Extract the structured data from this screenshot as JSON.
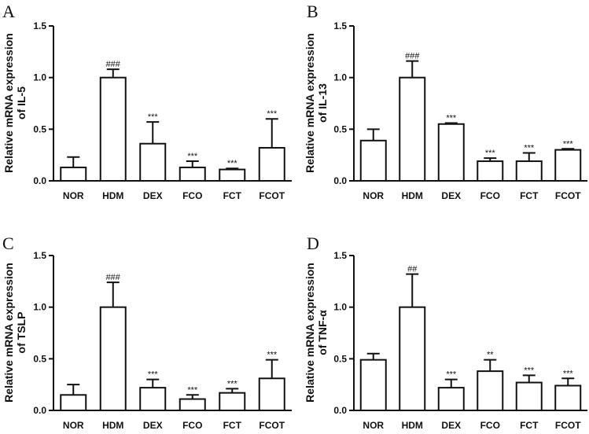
{
  "chart_data": [
    {
      "type": "bar",
      "panel": "A",
      "ylabel_lines": [
        "Relative mRNA expression",
        "of IL-5"
      ],
      "categories": [
        "NOR",
        "HDM",
        "DEX",
        "FCO",
        "FCT",
        "FCOT"
      ],
      "values": [
        0.13,
        1.0,
        0.36,
        0.13,
        0.11,
        0.32
      ],
      "errors": [
        0.1,
        0.08,
        0.21,
        0.06,
        0.01,
        0.28
      ],
      "significance": [
        "",
        "###",
        "***",
        "***",
        "***",
        "***"
      ],
      "ylim": [
        0,
        1.5
      ],
      "yticks": [
        0.0,
        0.5,
        1.0,
        1.5
      ],
      "ytick_labels": [
        "0.0",
        "0.5",
        "1.0",
        "1.5"
      ]
    },
    {
      "type": "bar",
      "panel": "B",
      "ylabel_lines": [
        "Relative mRNA expression",
        "of IL-13"
      ],
      "categories": [
        "NOR",
        "HDM",
        "DEX",
        "FCO",
        "FCT",
        "FCOT"
      ],
      "values": [
        0.39,
        1.0,
        0.55,
        0.19,
        0.19,
        0.3
      ],
      "errors": [
        0.11,
        0.16,
        0.01,
        0.03,
        0.08,
        0.01
      ],
      "significance": [
        "",
        "###",
        "***",
        "***",
        "***",
        "***"
      ],
      "ylim": [
        0,
        1.5
      ],
      "yticks": [
        0.0,
        0.5,
        1.0,
        1.5
      ],
      "ytick_labels": [
        "0.0",
        "0.5",
        "1.0",
        "1.5"
      ]
    },
    {
      "type": "bar",
      "panel": "C",
      "ylabel_lines": [
        "Relative mRNA expression",
        "of TSLP"
      ],
      "categories": [
        "NOR",
        "HDM",
        "DEX",
        "FCO",
        "FCT",
        "FCOT"
      ],
      "values": [
        0.15,
        1.0,
        0.22,
        0.11,
        0.17,
        0.31
      ],
      "errors": [
        0.1,
        0.24,
        0.08,
        0.04,
        0.04,
        0.18
      ],
      "significance": [
        "",
        "###",
        "***",
        "***",
        "***",
        "***"
      ],
      "ylim": [
        0,
        1.5
      ],
      "yticks": [
        0.0,
        0.5,
        1.0,
        1.5
      ],
      "ytick_labels": [
        "0.0",
        "0.5",
        "1.0",
        "1.5"
      ]
    },
    {
      "type": "bar",
      "panel": "D",
      "ylabel_lines": [
        "Relative mRNA expression",
        "of TNF-α"
      ],
      "categories": [
        "NOR",
        "HDM",
        "DEX",
        "FCO",
        "FCT",
        "FCOT"
      ],
      "values": [
        0.49,
        1.0,
        0.22,
        0.38,
        0.27,
        0.24
      ],
      "errors": [
        0.06,
        0.32,
        0.08,
        0.11,
        0.07,
        0.07
      ],
      "significance": [
        "",
        "##",
        "***",
        "**",
        "***",
        "***"
      ],
      "ylim": [
        0,
        1.5
      ],
      "yticks": [
        0.0,
        0.5,
        1.0,
        1.5
      ],
      "ytick_labels": [
        "0.0",
        "0.5",
        "1.0",
        "1.5"
      ]
    }
  ]
}
